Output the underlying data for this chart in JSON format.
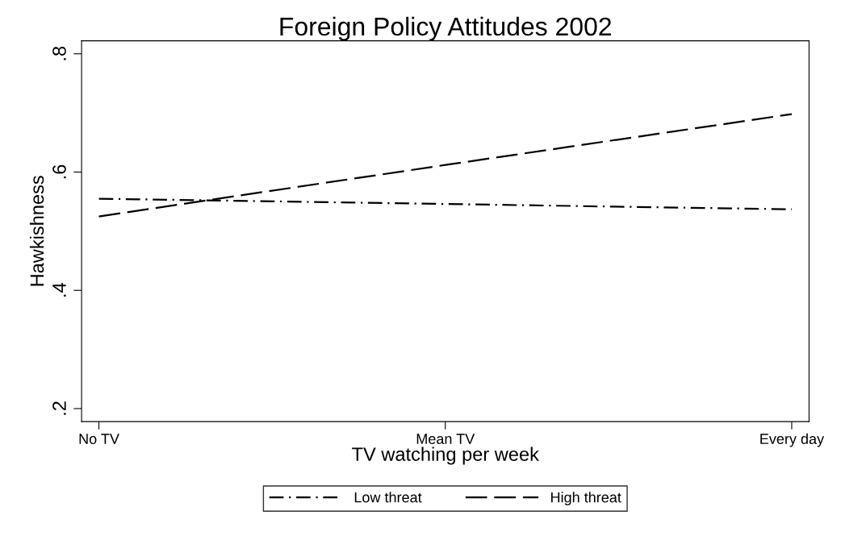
{
  "chart_data": {
    "type": "line",
    "title": "Foreign Policy Attitudes 2002",
    "xlabel": "TV watching per week",
    "ylabel": "Hawkishness",
    "categories": [
      "No TV",
      "Mean TV",
      "Every day"
    ],
    "series": [
      {
        "name": "Low threat",
        "color": "#000000",
        "values": [
          0.555,
          0.546,
          0.537
        ],
        "line_style": "dashdot"
      },
      {
        "name": "High threat",
        "color": "#000000",
        "values": [
          0.525,
          0.612,
          0.698
        ],
        "line_style": "dashed"
      }
    ],
    "ylim": [
      0.178,
      0.822
    ],
    "yticks": [
      {
        "value": 0.2,
        "label": ".2"
      },
      {
        "value": 0.4,
        "label": ".4"
      },
      {
        "value": 0.6,
        "label": ".6"
      },
      {
        "value": 0.8,
        "label": ".8"
      }
    ],
    "grid": false,
    "legend": "bottom",
    "marker": "none"
  }
}
